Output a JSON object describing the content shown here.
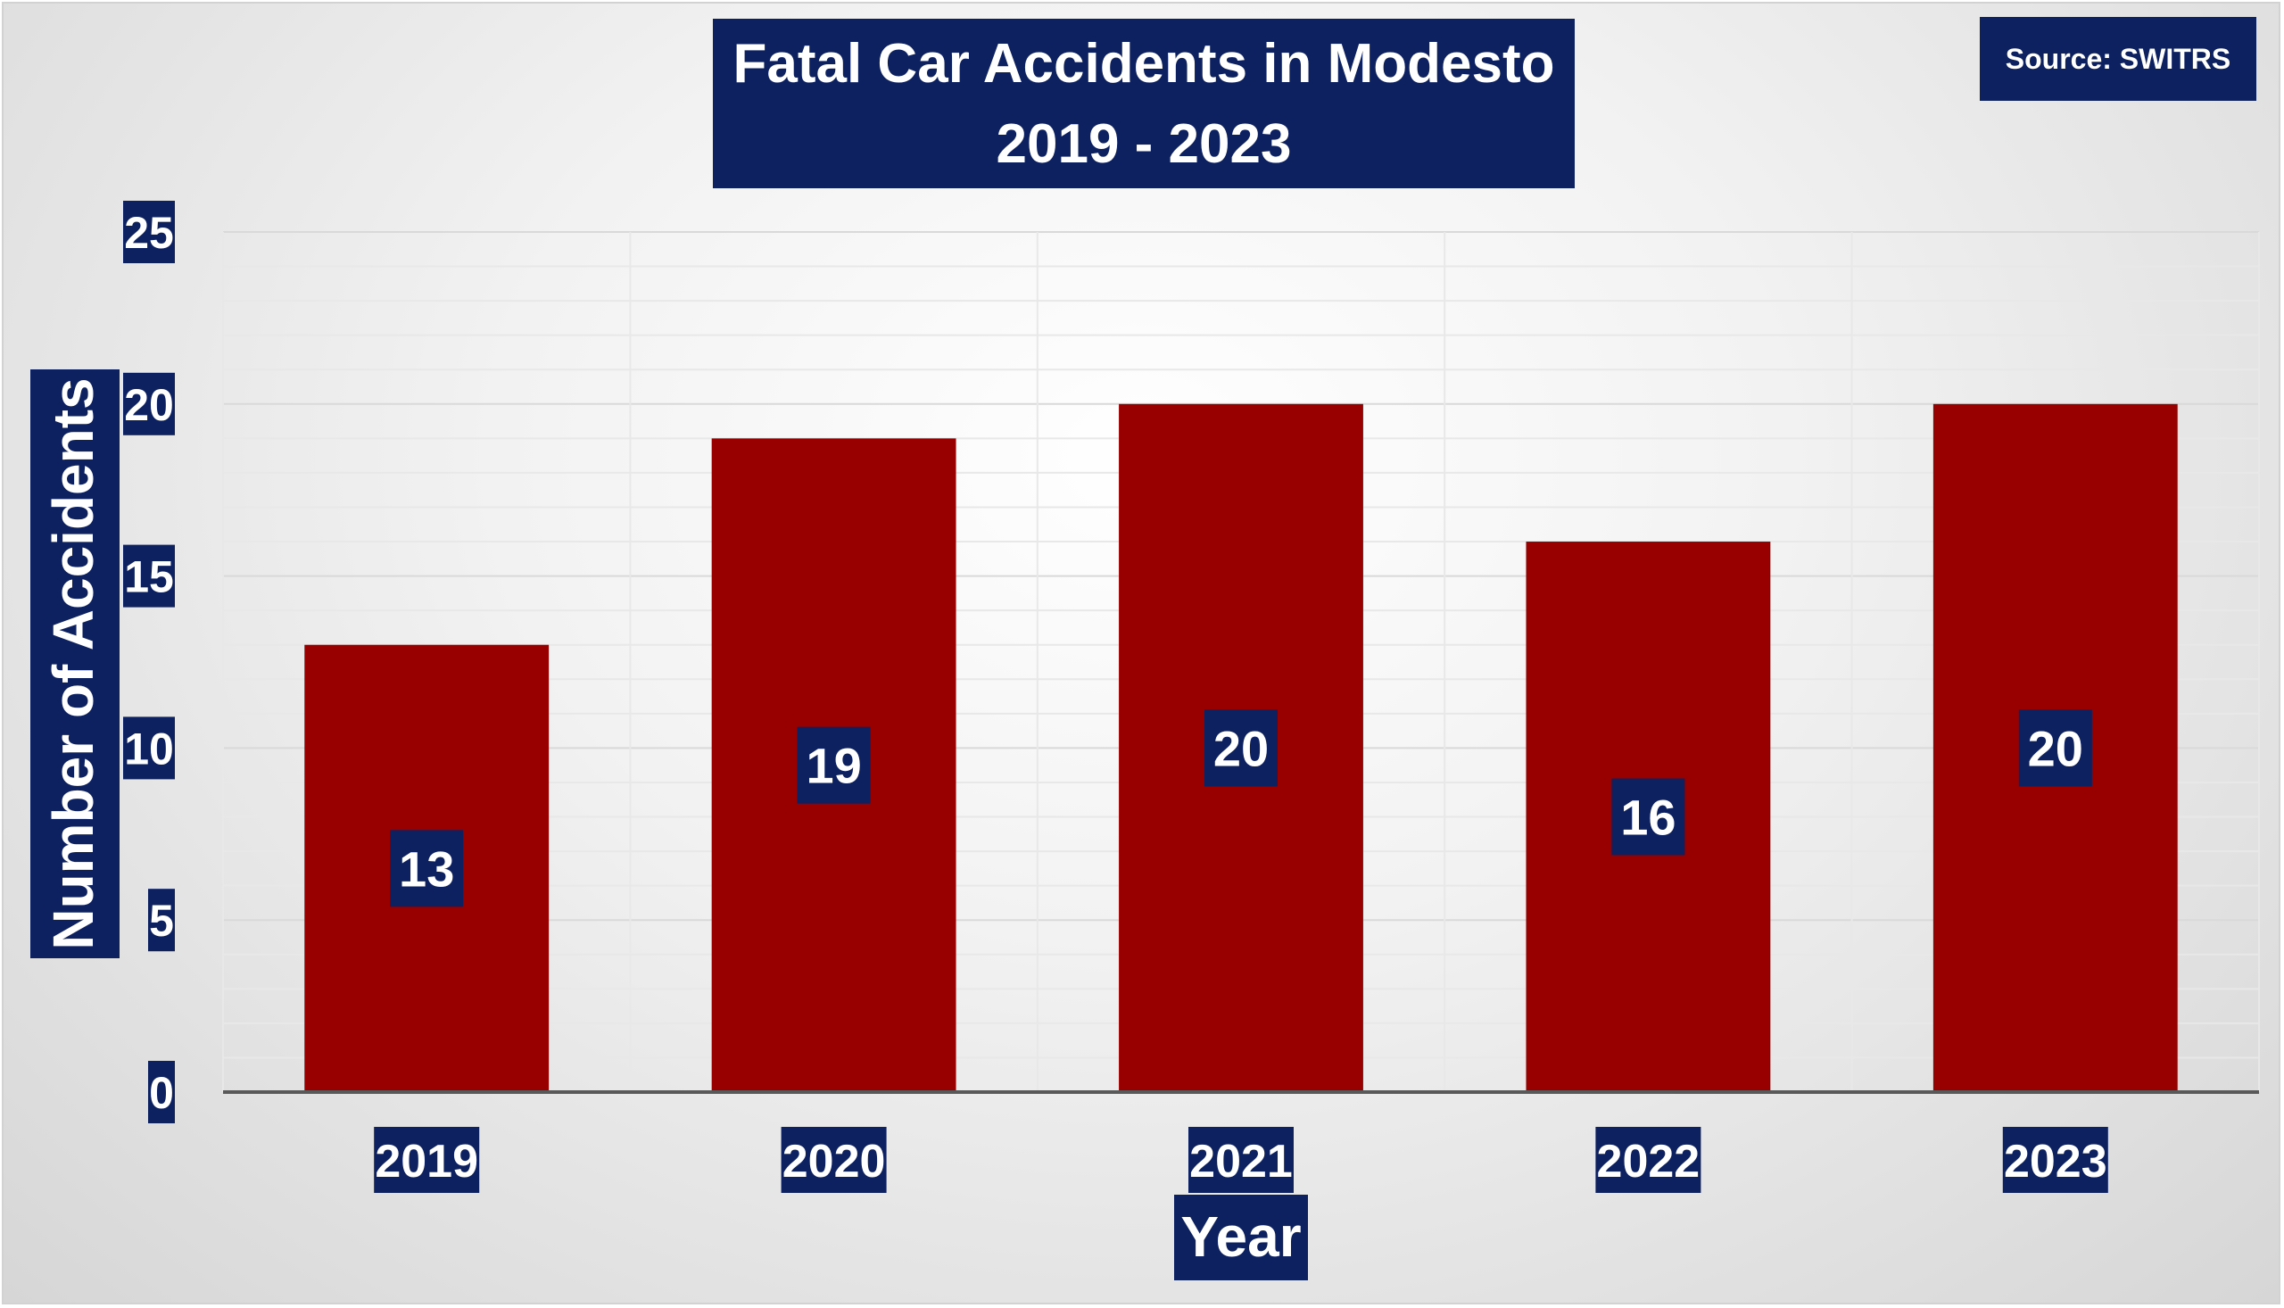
{
  "chart_data": {
    "type": "bar",
    "title_line1": "Fatal Car Accidents in Modesto",
    "title_line2": "2019 - 2023",
    "source": "Source: SWITRS",
    "xlabel": "Year",
    "ylabel": "Number of Accidents",
    "categories": [
      "2019",
      "2020",
      "2021",
      "2022",
      "2023"
    ],
    "values": [
      13,
      19,
      20,
      16,
      20
    ],
    "ylim": [
      0,
      25
    ],
    "yticks": [
      "0",
      "5",
      "10",
      "15",
      "20",
      "25"
    ],
    "grid": true,
    "legend": "none",
    "colors": {
      "bar": "#980000",
      "label_box": "#0d2060",
      "text": "#ffffff",
      "axis": "#595959",
      "major_grid": "#d9d9d9",
      "minor_grid": "#e8e8e8"
    }
  }
}
